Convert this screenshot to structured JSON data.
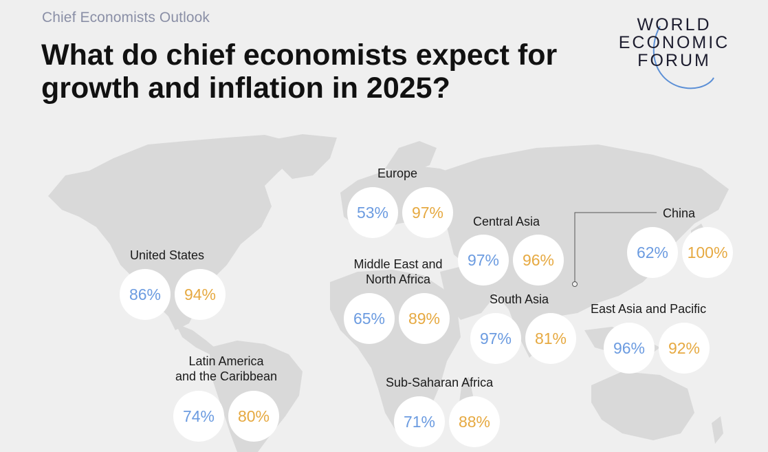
{
  "header": {
    "kicker": "Chief Economists Outlook",
    "title": "What do chief economists expect for growth and inflation in 2025?"
  },
  "logo": {
    "line1": "WORLD",
    "line2": "ECONOMIC",
    "line3": "FORUM",
    "arc_color": "#5b8fd6"
  },
  "colors": {
    "growth": "#6b9be0",
    "inflation": "#e6a941",
    "land": "#d9d9d9",
    "background": "#efefef"
  },
  "regions": {
    "united_states": {
      "label": "United States",
      "growth": "86%",
      "inflation": "94%"
    },
    "latin_america": {
      "label1": "Latin America",
      "label2": "and the Caribbean",
      "growth": "74%",
      "inflation": "80%"
    },
    "europe": {
      "label": "Europe",
      "growth": "53%",
      "inflation": "97%"
    },
    "mena": {
      "label1": "Middle East and",
      "label2": "North Africa",
      "growth": "65%",
      "inflation": "89%"
    },
    "central_asia": {
      "label": "Central Asia",
      "growth": "97%",
      "inflation": "96%"
    },
    "south_asia": {
      "label": "South Asia",
      "growth": "97%",
      "inflation": "81%"
    },
    "china": {
      "label": "China",
      "growth": "62%",
      "inflation": "100%"
    },
    "east_asia_pacific": {
      "label": "East Asia and Pacific",
      "growth": "96%",
      "inflation": "92%"
    },
    "sub_saharan_africa": {
      "label": "Sub-Saharan Africa",
      "growth": "71%",
      "inflation": "88%"
    }
  }
}
